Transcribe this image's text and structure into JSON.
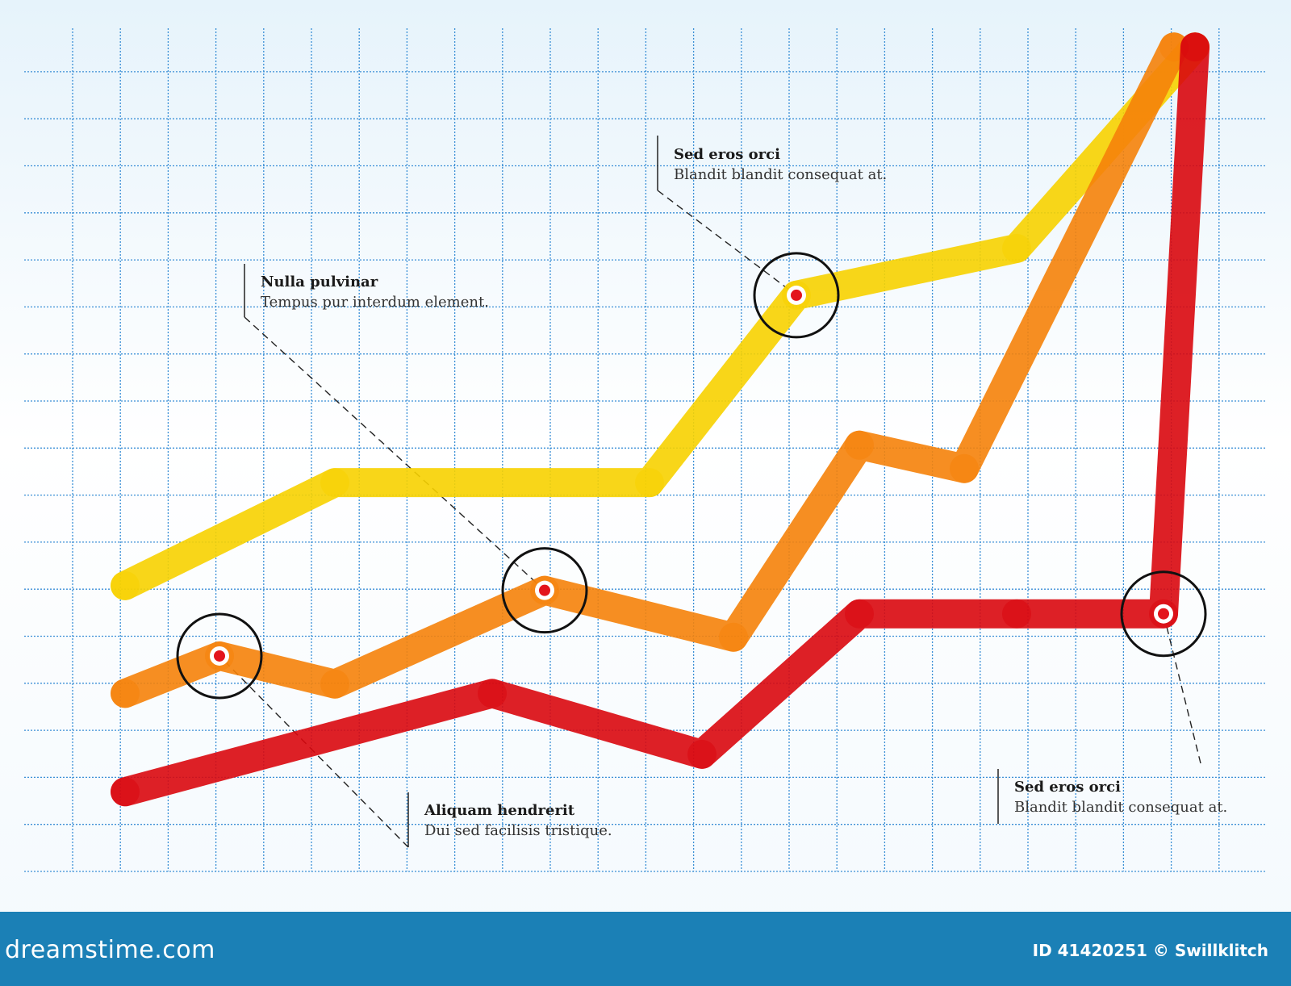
{
  "chart_data": {
    "type": "line",
    "x": [
      1,
      2,
      3,
      4,
      5,
      6,
      7,
      8,
      9,
      10,
      11
    ],
    "xlim": [
      0.5,
      11.5
    ],
    "ylim": [
      0,
      18
    ],
    "grid": true,
    "series": [
      {
        "color": "#f7d200",
        "x": [
          1,
          3,
          6,
          7.4,
          9.5,
          11.2
        ],
        "values": [
          6.1,
          8.3,
          8.3,
          12.3,
          13.3,
          17.6
        ]
      },
      {
        "color": "#f5820a",
        "x": [
          1,
          1.9,
          3,
          5,
          6.8,
          8,
          9,
          11
        ],
        "values": [
          3.8,
          4.6,
          4.0,
          6.0,
          5.0,
          9.1,
          8.6,
          17.6
        ]
      },
      {
        "color": "#d9080e",
        "x": [
          1,
          4.5,
          6.5,
          8,
          9.5,
          10.9,
          11.2
        ],
        "values": [
          1.7,
          3.8,
          2.5,
          5.5,
          5.5,
          5.5,
          17.6
        ]
      }
    ],
    "highlights": [
      {
        "series": 1,
        "x": 1.9,
        "y": 4.6
      },
      {
        "series": 1,
        "x": 5,
        "y": 6.0
      },
      {
        "series": 0,
        "x": 7.4,
        "y": 12.3
      },
      {
        "series": 2,
        "x": 10.9,
        "y": 5.5
      }
    ],
    "annotations": [
      {
        "title": "Nulla pulvinar",
        "text": "Tempus pur interdum element."
      },
      {
        "title": "Sed eros orci",
        "text": "Blandit blandit consequat at."
      },
      {
        "title": "Aliquam hendrerit",
        "text": "Dui sed facilisis tristique."
      },
      {
        "title": "Sed eros orci",
        "text": "Blandit blandit consequat at."
      }
    ]
  },
  "footer": {
    "brand": "dreamstime.com",
    "stock_id": "ID 41420251 © Swillklitch"
  }
}
